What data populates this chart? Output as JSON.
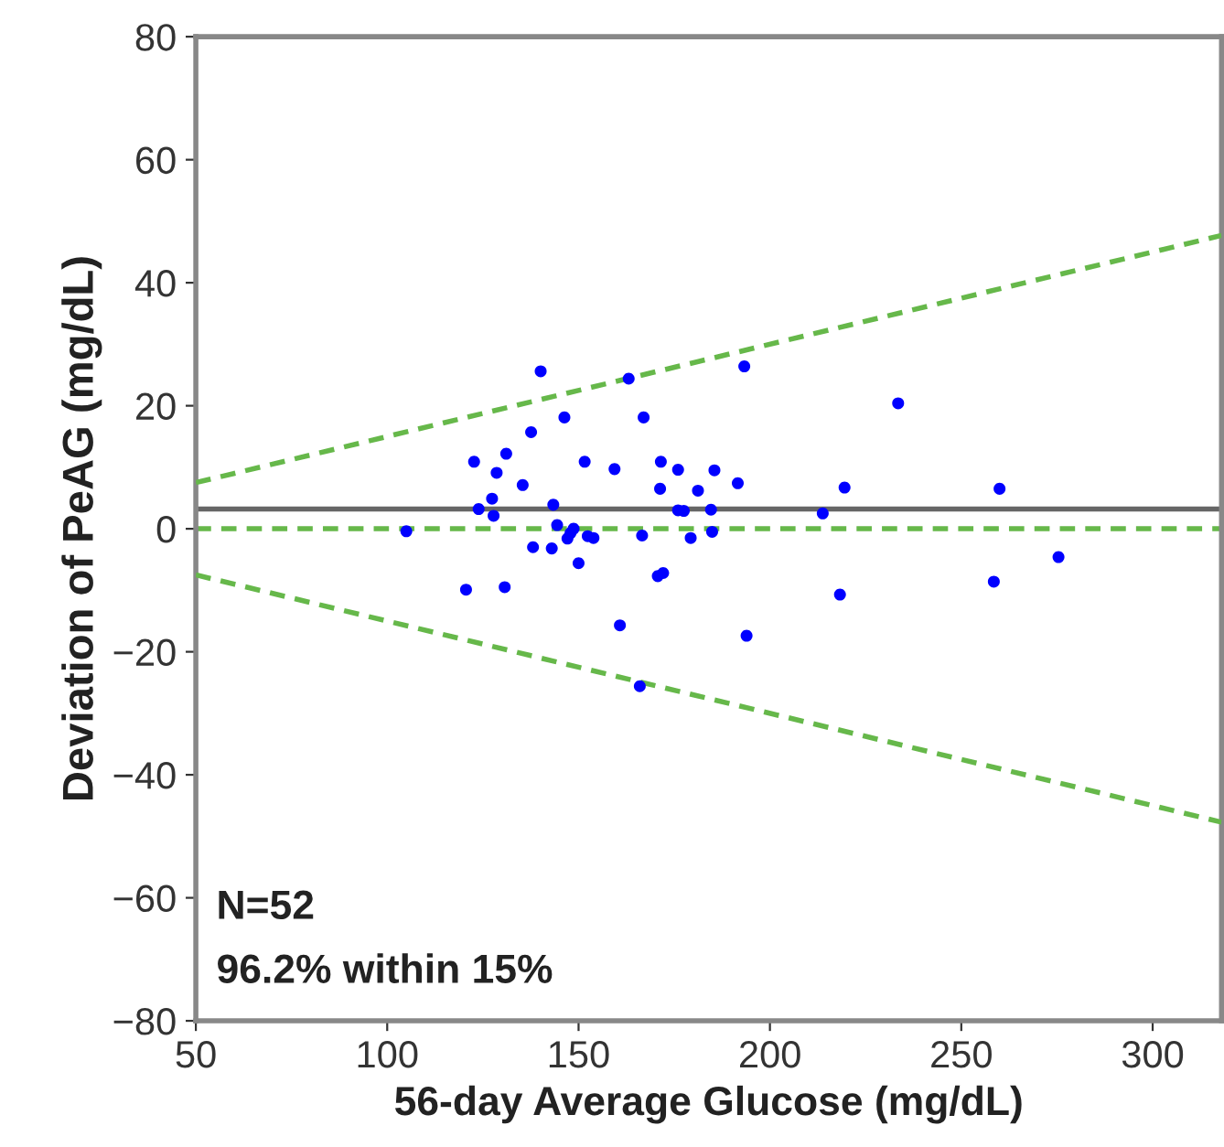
{
  "chart_data": {
    "type": "scatter",
    "xlabel": "56-day Average Glucose (mg/dL)",
    "ylabel": "Deviation of PeAG (mg/dL)",
    "xlim": [
      50,
      318
    ],
    "xticks": [
      50,
      100,
      150,
      200,
      250,
      300
    ],
    "ylim": [
      -80,
      80
    ],
    "yticks": [
      -80,
      -60,
      -40,
      -20,
      0,
      20,
      40,
      60,
      80
    ],
    "grid": false,
    "legend": false,
    "series": [
      {
        "color": "#0000ff",
        "marker": "circle",
        "x": [
          105.0,
          120.6,
          122.7,
          123.9,
          127.4,
          127.8,
          128.6,
          130.7,
          131.1,
          135.4,
          137.6,
          138.1,
          140.1,
          143.0,
          143.4,
          144.4,
          146.3,
          147.1,
          147.9,
          148.7,
          150.0,
          151.6,
          152.4,
          153.9,
          159.4,
          160.8,
          163.1,
          166.0,
          166.6,
          167.0,
          170.7,
          171.5,
          171.3,
          172.1,
          176.0,
          176.0,
          177.5,
          179.3,
          181.2,
          184.6,
          184.9,
          185.5,
          191.6,
          193.3,
          193.9,
          213.8,
          218.3,
          219.5,
          233.5,
          258.5,
          260.0,
          275.4
        ],
        "values": [
          -0.4,
          -9.9,
          10.9,
          3.2,
          4.9,
          2.1,
          9.1,
          -9.5,
          12.2,
          7.1,
          15.7,
          -3.0,
          25.6,
          -3.2,
          3.9,
          0.6,
          18.1,
          -1.6,
          -0.7,
          0.0,
          -5.6,
          10.9,
          -1.2,
          -1.5,
          9.7,
          -15.7,
          24.4,
          -25.6,
          -1.1,
          18.1,
          -7.7,
          10.9,
          6.5,
          -7.2,
          9.6,
          3.0,
          2.9,
          -1.5,
          6.2,
          3.1,
          -0.5,
          9.5,
          7.4,
          26.4,
          -17.4,
          2.5,
          -10.7,
          6.7,
          20.4,
          -8.6,
          6.5,
          -4.6
        ]
      },
      {
        "type": "line",
        "color": "#66b84a",
        "line_style": "dashed",
        "marker": "none",
        "x": [
          50,
          318
        ],
        "values": [
          7.5,
          47.7
        ]
      },
      {
        "type": "line",
        "color": "#66b84a",
        "line_style": "dashed",
        "marker": "none",
        "x": [
          50,
          318
        ],
        "values": [
          -7.5,
          -47.7
        ]
      }
    ],
    "ref_lines": [
      {
        "axis": "y",
        "value": 3.2,
        "color": "#666666",
        "line_style": "solid"
      },
      {
        "axis": "y",
        "value": 0,
        "color": "#66b84a",
        "line_style": "dashed"
      }
    ],
    "annotations": [
      "N=52",
      "96.2% within 15%"
    ]
  }
}
